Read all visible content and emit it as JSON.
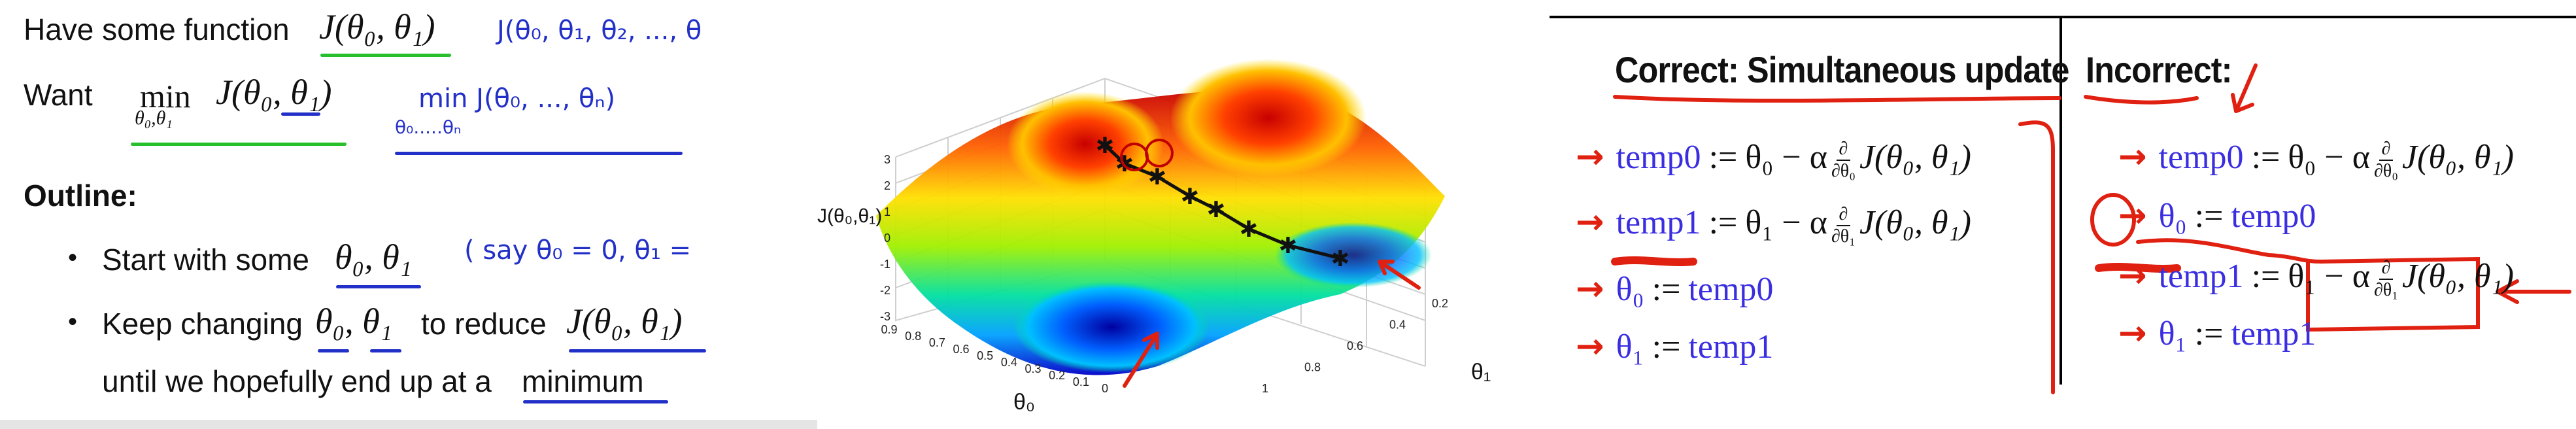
{
  "left": {
    "line1_text": "Have some function",
    "line1_math": "J(θ₀, θ₁)",
    "line1_hand": "J(θ₀, θ₁, θ₂, ..., θ",
    "want_label": "Want",
    "want_min": "min",
    "want_min_sub": "θ₀,θ₁",
    "want_math": "J(θ₀, θ₁)",
    "want_hand": "min J(θ₀, ..., θₙ)",
    "want_hand_sub": "θ₀.....θₙ",
    "outline_label": "Outline:",
    "bullet1_text": "Start with some",
    "bullet1_math": "θ₀, θ₁",
    "bullet1_hand": "( say θ₀ = 0, θ₁ =",
    "bullet2_text_a": "Keep changing",
    "bullet2_math_a": "θ₀, θ₁",
    "bullet2_text_b": "to reduce",
    "bullet2_math_b": "J(θ₀, θ₁)",
    "bullet2_line2": "until we hopefully end up at a",
    "bullet2_minimum": "minimum"
  },
  "plot": {
    "zlabel": "J(θ₀,θ₁)",
    "xlabel": "θ₀",
    "ylabel": "θ₁",
    "z_ticks": [
      "3",
      "2",
      "1",
      "0",
      "-1",
      "-2",
      "-3"
    ],
    "x_ticks": [
      "0.9",
      "0.8",
      "0.7",
      "0.6",
      "0.5",
      "0.4",
      "0.3",
      "0.2",
      "0.1",
      "0"
    ],
    "y_ticks": [
      "0.2",
      "0.4",
      "0.6",
      "0.8",
      "1"
    ],
    "colormap": [
      "#0000c8",
      "#00a0ff",
      "#00e0a0",
      "#a0f000",
      "#ffe000",
      "#ff6000",
      "#c80000"
    ]
  },
  "right": {
    "correct_header": "Correct: Simultaneous update",
    "incorrect_header": "Incorrect:",
    "correct": [
      {
        "lhs": "temp0",
        "op": ":=",
        "rhs_a": "θ₀ − α",
        "frac_num": "∂",
        "frac_den": "∂θ₀",
        "rhs_b": "J(θ₀, θ₁)"
      },
      {
        "lhs": "temp1",
        "op": ":=",
        "rhs_a": "θ₁ − α",
        "frac_num": "∂",
        "frac_den": "∂θ₁",
        "rhs_b": "J(θ₀, θ₁)"
      },
      {
        "lhs": "θ₀",
        "op": ":=",
        "rhs_a": "temp0"
      },
      {
        "lhs": "θ₁",
        "op": ":=",
        "rhs_a": "temp1"
      }
    ],
    "incorrect": [
      {
        "lhs": "temp0",
        "op": ":=",
        "rhs_a": "θ₀ − α",
        "frac_num": "∂",
        "frac_den": "∂θ₀",
        "rhs_b": "J(θ₀, θ₁)"
      },
      {
        "lhs": "θ₀",
        "op": ":=",
        "rhs_a": "temp0"
      },
      {
        "lhs": "temp1",
        "op": ":=",
        "rhs_a": "θ₁ − α",
        "frac_num": "∂",
        "frac_den": "∂θ₁",
        "rhs_b": "J(θ₀, θ₁)"
      },
      {
        "lhs": "θ₁",
        "op": ":=",
        "rhs_a": "temp1"
      }
    ],
    "arrow_glyph": "→"
  }
}
